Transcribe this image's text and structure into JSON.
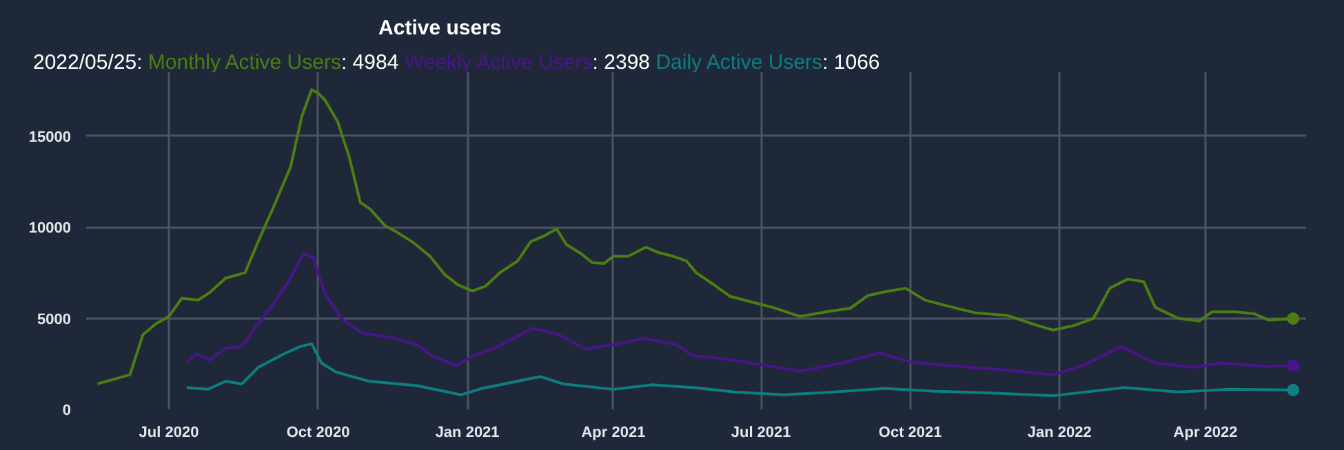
{
  "chart_data": {
    "type": "line",
    "title": "Active users",
    "annotations": [
      "2022/05/25:",
      ": 4984",
      ": 2398",
      ": 1066"
    ],
    "legend": "top left",
    "grid": true,
    "xlim": [
      "2020-05-11",
      "2022-06-02"
    ],
    "xticks": [
      {
        "value": "2020-07-01",
        "label": "Jul 2020"
      },
      {
        "value": "2020-10-01",
        "label": "Oct 2020"
      },
      {
        "value": "2021-01-01",
        "label": "Jan 2021"
      },
      {
        "value": "2021-04-01",
        "label": "Apr 2021"
      },
      {
        "value": "2021-07-01",
        "label": "Jul 2021"
      },
      {
        "value": "2021-10-01",
        "label": "Oct 2021"
      },
      {
        "value": "2022-01-01",
        "label": "Jan 2022"
      },
      {
        "value": "2022-04-01",
        "label": "Apr 2022"
      }
    ],
    "ylim": [
      0,
      18500
    ],
    "yticks": [
      0,
      5000,
      10000,
      15000
    ],
    "series": [
      {
        "name": "Monthly Active Users",
        "color": "#4b7f11",
        "x": [
          "2020-05-18",
          "2020-06-07",
          "2020-06-15",
          "2020-06-23",
          "2020-07-01",
          "2020-07-09",
          "2020-07-19",
          "2020-07-26",
          "2020-08-05",
          "2020-08-17",
          "2020-08-25",
          "2020-09-03",
          "2020-09-14",
          "2020-09-21",
          "2020-09-27",
          "2020-10-01",
          "2020-10-05",
          "2020-10-13",
          "2020-10-20",
          "2020-10-27",
          "2020-11-02",
          "2020-11-11",
          "2020-11-19",
          "2020-11-28",
          "2020-12-09",
          "2020-12-18",
          "2020-12-26",
          "2021-01-04",
          "2021-01-12",
          "2021-01-21",
          "2021-02-01",
          "2021-02-09",
          "2021-02-18",
          "2021-02-25",
          "2021-03-03",
          "2021-03-12",
          "2021-03-19",
          "2021-03-26",
          "2021-04-01",
          "2021-04-10",
          "2021-04-21",
          "2021-04-29",
          "2021-05-08",
          "2021-05-16",
          "2021-05-22",
          "2021-06-01",
          "2021-06-12",
          "2021-06-25",
          "2021-07-08",
          "2021-07-25",
          "2021-08-10",
          "2021-08-25",
          "2021-09-05",
          "2021-09-15",
          "2021-09-28",
          "2021-10-10",
          "2021-10-25",
          "2021-11-10",
          "2021-11-30",
          "2021-12-15",
          "2021-12-28",
          "2022-01-10",
          "2022-01-22",
          "2022-02-01",
          "2022-02-12",
          "2022-02-22",
          "2022-03-01",
          "2022-03-15",
          "2022-03-28",
          "2022-04-05",
          "2022-04-20",
          "2022-05-01",
          "2022-05-10",
          "2022-05-25"
        ],
        "values": [
          1400,
          1900,
          4100,
          4700,
          5100,
          6100,
          6000,
          6400,
          7200,
          7500,
          9200,
          11000,
          13300,
          16100,
          17550,
          17350,
          17000,
          15800,
          13900,
          11350,
          11000,
          10100,
          9700,
          9200,
          8400,
          7400,
          6850,
          6500,
          6750,
          7500,
          8150,
          9200,
          9550,
          9900,
          9050,
          8550,
          8050,
          8000,
          8400,
          8400,
          8900,
          8600,
          8400,
          8150,
          7500,
          6900,
          6200,
          5900,
          5600,
          5100,
          5350,
          5550,
          6250,
          6450,
          6650,
          6000,
          5650,
          5300,
          5150,
          4700,
          4350,
          4600,
          5000,
          6650,
          7150,
          7000,
          5600,
          5000,
          4850,
          5350,
          5350,
          5250,
          4900,
          4984
        ]
      },
      {
        "name": "Weekly Active Users",
        "color": "#4a148c",
        "x": [
          "2020-07-12",
          "2020-07-18",
          "2020-07-26",
          "2020-08-05",
          "2020-08-15",
          "2020-08-22",
          "2020-09-01",
          "2020-09-12",
          "2020-09-22",
          "2020-09-28",
          "2020-10-05",
          "2020-10-15",
          "2020-10-28",
          "2020-11-15",
          "2020-12-01",
          "2020-12-10",
          "2020-12-25",
          "2021-01-05",
          "2021-01-20",
          "2021-02-10",
          "2021-02-25",
          "2021-03-15",
          "2021-04-01",
          "2021-04-20",
          "2021-05-10",
          "2021-05-20",
          "2021-06-10",
          "2021-07-05",
          "2021-07-25",
          "2021-08-20",
          "2021-09-12",
          "2021-10-01",
          "2021-10-25",
          "2021-11-30",
          "2021-12-28",
          "2022-01-15",
          "2022-02-08",
          "2022-03-01",
          "2022-03-25",
          "2022-04-10",
          "2022-05-10",
          "2022-05-25"
        ],
        "values": [
          2550,
          3050,
          2700,
          3350,
          3450,
          4350,
          5500,
          6900,
          8550,
          8350,
          6400,
          5000,
          4200,
          3950,
          3550,
          2950,
          2400,
          2950,
          3450,
          4450,
          4150,
          3300,
          3550,
          3900,
          3550,
          2950,
          2750,
          2400,
          2100,
          2550,
          3100,
          2600,
          2400,
          2150,
          1900,
          2400,
          3450,
          2550,
          2300,
          2550,
          2350,
          2398
        ]
      },
      {
        "name": "Daily Active Users",
        "color": "#0d7f7f",
        "x": [
          "2020-07-12",
          "2020-07-25",
          "2020-08-05",
          "2020-08-15",
          "2020-08-25",
          "2020-09-10",
          "2020-09-20",
          "2020-09-27",
          "2020-10-03",
          "2020-10-12",
          "2020-11-01",
          "2020-12-01",
          "2020-12-28",
          "2021-01-10",
          "2021-02-15",
          "2021-03-01",
          "2021-04-01",
          "2021-04-25",
          "2021-05-20",
          "2021-06-15",
          "2021-07-15",
          "2021-08-15",
          "2021-09-15",
          "2021-10-15",
          "2021-11-20",
          "2021-12-28",
          "2022-02-10",
          "2022-03-15",
          "2022-04-15",
          "2022-05-25"
        ],
        "values": [
          1200,
          1100,
          1550,
          1400,
          2300,
          3050,
          3450,
          3600,
          2550,
          2050,
          1550,
          1300,
          800,
          1150,
          1800,
          1400,
          1100,
          1350,
          1200,
          950,
          800,
          950,
          1150,
          1000,
          900,
          750,
          1200,
          950,
          1100,
          1066
        ]
      }
    ]
  }
}
